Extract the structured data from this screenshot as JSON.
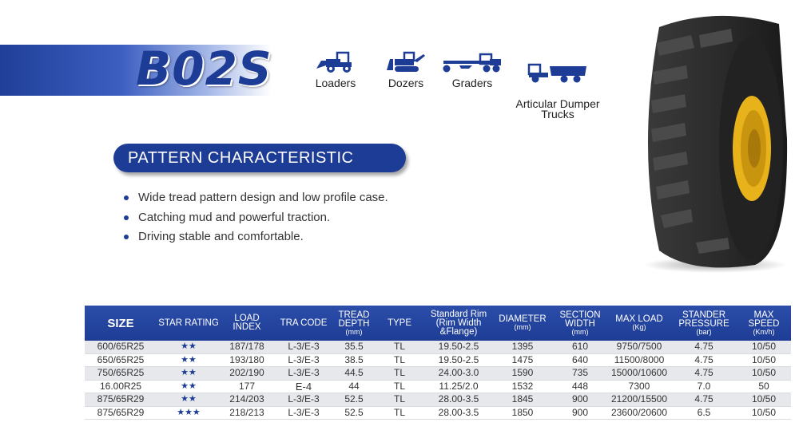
{
  "model": "B02S",
  "applications": [
    {
      "label": "Loaders",
      "icon": "loader-icon"
    },
    {
      "label": "Dozers",
      "icon": "dozer-icon"
    },
    {
      "label": "Graders",
      "icon": "grader-icon"
    },
    {
      "label": "Articular Dumper\nTrucks",
      "icon": "dumper-truck-icon"
    }
  ],
  "section_title": "PATTERN CHARACTERISTIC",
  "features": [
    "Wide tread pattern design and low profile case.",
    "Catching mud and powerful traction.",
    "Driving stable and comfortable."
  ],
  "colors": {
    "brand_blue": "#1d3c96",
    "rim_yellow": "#e8b21a"
  },
  "table": {
    "headers": [
      {
        "label": "SIZE",
        "unit": ""
      },
      {
        "label": "STAR RATING",
        "unit": ""
      },
      {
        "label": "LOAD INDEX",
        "unit": ""
      },
      {
        "label": "TRA CODE",
        "unit": ""
      },
      {
        "label": "TREAD DEPTH",
        "unit": "(mm)"
      },
      {
        "label": "TYPE",
        "unit": ""
      },
      {
        "label": "Standard Rim (Rim Width &Flange)",
        "unit": ""
      },
      {
        "label": "DIAMETER",
        "unit": "(mm)"
      },
      {
        "label": "SECTION WIDTH",
        "unit": "(mm)"
      },
      {
        "label": "MAX LOAD",
        "unit": "(Kg)"
      },
      {
        "label": "STANDER PRESSURE",
        "unit": "(bar)"
      },
      {
        "label": "MAX SPEED",
        "unit": "(Km/h)"
      }
    ],
    "rows": [
      [
        "600/65R25",
        "★★",
        "187/178",
        "L-3/E-3",
        "35.5",
        "TL",
        "19.50-2.5",
        "1395",
        "610",
        "9750/7500",
        "4.75",
        "10/50"
      ],
      [
        "650/65R25",
        "★★",
        "193/180",
        "L-3/E-3",
        "38.5",
        "TL",
        "19.50-2.5",
        "1475",
        "640",
        "11500/8000",
        "4.75",
        "10/50"
      ],
      [
        "750/65R25",
        "★★",
        "202/190",
        "L-3/E-3",
        "44.5",
        "TL",
        "24.00-3.0",
        "1590",
        "735",
        "15000/10600",
        "4.75",
        "10/50"
      ],
      [
        "16.00R25",
        "★★",
        "177",
        "E-4",
        "44",
        "TL",
        "11.25/2.0",
        "1532",
        "448",
        "7300",
        "7.0",
        "50"
      ],
      [
        "875/65R29",
        "★★",
        "214/203",
        "L-3/E-3",
        "52.5",
        "TL",
        "28.00-3.5",
        "1845",
        "900",
        "21200/15500",
        "4.75",
        "10/50"
      ],
      [
        "875/65R29",
        "★★★",
        "218/213",
        "L-3/E-3",
        "52.5",
        "TL",
        "28.00-3.5",
        "1850",
        "900",
        "23600/20600",
        "6.5",
        "10/50"
      ]
    ]
  }
}
